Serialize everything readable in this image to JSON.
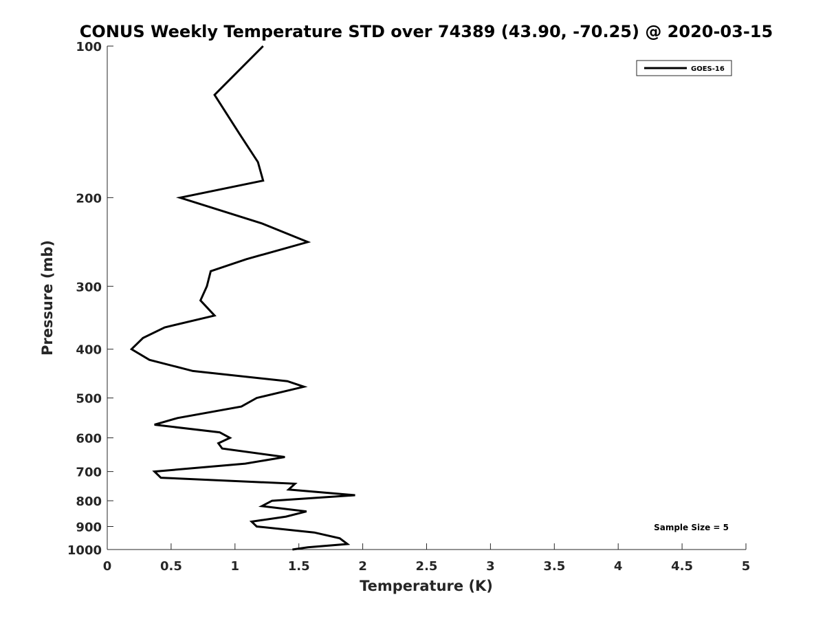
{
  "chart_data": {
    "type": "line",
    "title": "CONUS Weekly Temperature STD over 74389 (43.90, -70.25) @ 2020-03-15",
    "xlabel": "Temperature (K)",
    "ylabel": "Pressure (mb)",
    "xlim": [
      0,
      5
    ],
    "ylim": [
      100,
      1000
    ],
    "y_scale": "log",
    "y_reversed": true,
    "x_ticks": [
      "0",
      "0.5",
      "1",
      "1.5",
      "2",
      "2.5",
      "3",
      "3.5",
      "4",
      "4.5",
      "5"
    ],
    "x_tick_values": [
      0,
      0.5,
      1,
      1.5,
      2,
      2.5,
      3,
      3.5,
      4,
      4.5,
      5
    ],
    "y_ticks": [
      "100",
      "200",
      "300",
      "400",
      "500",
      "600",
      "700",
      "800",
      "900",
      "1000"
    ],
    "y_tick_values": [
      100,
      200,
      300,
      400,
      500,
      600,
      700,
      800,
      900,
      1000
    ],
    "grid": false,
    "legend_position": "top-right",
    "series": [
      {
        "name": "GOES-16",
        "color": "#000000",
        "points": [
          [
            1.22,
            100
          ],
          [
            0.84,
            125
          ],
          [
            1.04,
            150
          ],
          [
            1.18,
            170
          ],
          [
            1.22,
            185
          ],
          [
            0.57,
            200
          ],
          [
            1.21,
            225
          ],
          [
            1.57,
            245
          ],
          [
            1.09,
            265
          ],
          [
            0.81,
            280
          ],
          [
            0.78,
            300
          ],
          [
            0.73,
            320
          ],
          [
            0.84,
            343
          ],
          [
            0.45,
            362
          ],
          [
            0.28,
            380
          ],
          [
            0.19,
            400
          ],
          [
            0.33,
            420
          ],
          [
            0.67,
            442
          ],
          [
            1.41,
            463
          ],
          [
            1.54,
            475
          ],
          [
            1.17,
            500
          ],
          [
            1.05,
            520
          ],
          [
            0.55,
            548
          ],
          [
            0.37,
            565
          ],
          [
            0.88,
            585
          ],
          [
            0.96,
            600
          ],
          [
            0.87,
            615
          ],
          [
            0.9,
            630
          ],
          [
            1.39,
            655
          ],
          [
            1.08,
            675
          ],
          [
            0.37,
            700
          ],
          [
            0.42,
            720
          ],
          [
            1.47,
            740
          ],
          [
            1.42,
            760
          ],
          [
            1.94,
            780
          ],
          [
            1.29,
            800
          ],
          [
            1.21,
            820
          ],
          [
            1.56,
            840
          ],
          [
            1.4,
            860
          ],
          [
            1.13,
            880
          ],
          [
            1.17,
            900
          ],
          [
            1.62,
            925
          ],
          [
            1.82,
            950
          ],
          [
            1.88,
            975
          ],
          [
            1.57,
            990
          ],
          [
            1.45,
            1000
          ]
        ]
      }
    ],
    "annotation": "Sample Size = 5"
  }
}
